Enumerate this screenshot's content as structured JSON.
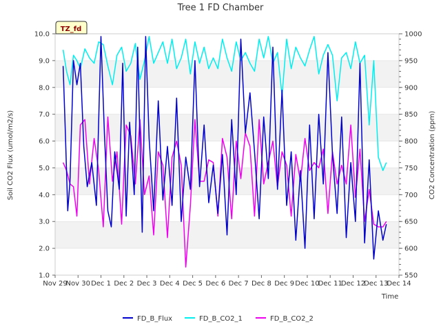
{
  "chart_data": {
    "type": "line",
    "title": "Tree 1 FD Chamber",
    "badge": "TZ_fd",
    "xlabel": "Time",
    "ylabel_left": "Soil CO2 Flux (umol/m2/s)",
    "ylabel_right": "CO2 Concentration (ppm)",
    "x_ticks": [
      "Nov 29",
      "Nov 30",
      "Dec 1",
      "Dec 2",
      "Dec 3",
      "Dec 4",
      "Dec 5",
      "Dec 6",
      "Dec 7",
      "Dec 8",
      "Dec 9",
      "Dec 10",
      "Dec 11",
      "Dec 12",
      "Dec 13",
      "Dec 14"
    ],
    "xlim": [
      0,
      15
    ],
    "ylim_left": [
      1.0,
      10.0
    ],
    "y_ticks_left": [
      "1.0",
      "2.0",
      "3.0",
      "4.0",
      "5.0",
      "6.0",
      "7.0",
      "8.0",
      "9.0",
      "10.0"
    ],
    "ylim_right": [
      550,
      1000
    ],
    "y_ticks_right": [
      "550",
      "600",
      "650",
      "700",
      "750",
      "800",
      "850",
      "900",
      "950",
      "1000"
    ],
    "legend_position": "bottom",
    "colors": {
      "flux": "#0000cc",
      "co2_1": "#00eeee",
      "co2_2": "#ee00ee",
      "band": "#f2f2f2",
      "grid": "#dddddd"
    },
    "series": [
      {
        "name": "FD_B_Flux",
        "axis": "left",
        "color": "#0000cc",
        "x": [
          0.35,
          0.45,
          0.55,
          0.65,
          0.8,
          0.95,
          1.1,
          1.25,
          1.4,
          1.6,
          1.8,
          2.0,
          2.15,
          2.3,
          2.45,
          2.6,
          2.8,
          2.95,
          3.1,
          3.25,
          3.45,
          3.6,
          3.8,
          3.95,
          4.1,
          4.3,
          4.5,
          4.7,
          4.9,
          5.1,
          5.3,
          5.5,
          5.7,
          5.9,
          6.1,
          6.3,
          6.5,
          6.7,
          6.9,
          7.1,
          7.3,
          7.5,
          7.7,
          7.9,
          8.1,
          8.3,
          8.5,
          8.7,
          8.9,
          9.1,
          9.3,
          9.5,
          9.7,
          9.9,
          10.1,
          10.3,
          10.5,
          10.7,
          10.9,
          11.1,
          11.3,
          11.5,
          11.7,
          11.9,
          12.1,
          12.3,
          12.5,
          12.7,
          12.9,
          13.1,
          13.3,
          13.5,
          13.7,
          13.9,
          14.1,
          14.3,
          14.45
        ],
        "y": [
          8.8,
          6.2,
          3.4,
          4.5,
          9.0,
          8.1,
          8.9,
          5.8,
          4.3,
          5.2,
          3.6,
          9.9,
          6.3,
          3.4,
          2.8,
          5.6,
          4.2,
          8.9,
          3.2,
          6.7,
          4.0,
          9.5,
          2.6,
          9.9,
          6.1,
          3.4,
          7.5,
          3.8,
          5.8,
          3.6,
          7.6,
          3.0,
          5.4,
          4.2,
          9.0,
          4.3,
          6.6,
          3.7,
          5.1,
          3.3,
          5.5,
          2.5,
          6.8,
          4.0,
          9.8,
          6.3,
          7.8,
          5.6,
          3.1,
          6.9,
          4.6,
          9.5,
          4.2,
          7.9,
          3.6,
          5.6,
          2.3,
          4.9,
          2.0,
          6.6,
          3.1,
          7.0,
          4.4,
          9.3,
          5.5,
          3.3,
          6.9,
          2.4,
          5.2,
          3.0,
          8.9,
          2.2,
          5.3,
          1.6,
          3.4,
          2.3,
          2.9
        ]
      },
      {
        "name": "FD_B_CO2_1",
        "axis": "right",
        "color": "#00eeee",
        "x": [
          0.35,
          0.5,
          0.65,
          0.8,
          0.95,
          1.1,
          1.3,
          1.5,
          1.7,
          1.9,
          2.1,
          2.3,
          2.5,
          2.7,
          2.9,
          3.1,
          3.3,
          3.5,
          3.7,
          3.9,
          4.1,
          4.3,
          4.5,
          4.7,
          4.9,
          5.1,
          5.3,
          5.5,
          5.7,
          5.9,
          6.1,
          6.3,
          6.5,
          6.7,
          6.9,
          7.1,
          7.3,
          7.5,
          7.7,
          7.9,
          8.1,
          8.3,
          8.5,
          8.7,
          8.9,
          9.1,
          9.3,
          9.5,
          9.7,
          9.9,
          10.1,
          10.3,
          10.5,
          10.7,
          10.9,
          11.1,
          11.3,
          11.5,
          11.7,
          11.9,
          12.1,
          12.3,
          12.5,
          12.7,
          12.9,
          13.1,
          13.3,
          13.5,
          13.7,
          13.9,
          14.1,
          14.3,
          14.45
        ],
        "y": [
          970,
          930,
          905,
          960,
          950,
          935,
          972,
          955,
          945,
          985,
          980,
          940,
          905,
          960,
          975,
          930,
          945,
          982,
          915,
          950,
          995,
          945,
          965,
          985,
          945,
          990,
          935,
          955,
          990,
          925,
          985,
          945,
          975,
          935,
          955,
          935,
          990,
          955,
          930,
          985,
          950,
          965,
          945,
          930,
          990,
          955,
          995,
          945,
          965,
          885,
          990,
          935,
          975,
          955,
          940,
          970,
          995,
          925,
          960,
          980,
          960,
          875,
          955,
          965,
          935,
          985,
          945,
          960,
          830,
          950,
          770,
          745,
          760
        ]
      },
      {
        "name": "FD_B_CO2_2",
        "axis": "right",
        "color": "#ee00ee",
        "x": [
          0.35,
          0.5,
          0.65,
          0.8,
          0.95,
          1.1,
          1.3,
          1.5,
          1.7,
          1.9,
          2.1,
          2.3,
          2.5,
          2.7,
          2.9,
          3.1,
          3.3,
          3.5,
          3.7,
          3.9,
          4.1,
          4.3,
          4.5,
          4.7,
          4.9,
          5.1,
          5.3,
          5.5,
          5.7,
          5.9,
          6.1,
          6.3,
          6.5,
          6.7,
          6.9,
          7.1,
          7.3,
          7.5,
          7.7,
          7.9,
          8.1,
          8.3,
          8.5,
          8.7,
          8.9,
          9.1,
          9.3,
          9.5,
          9.7,
          9.9,
          10.1,
          10.3,
          10.5,
          10.7,
          10.9,
          11.1,
          11.3,
          11.5,
          11.7,
          11.9,
          12.1,
          12.3,
          12.5,
          12.7,
          12.9,
          13.1,
          13.3,
          13.5,
          13.7,
          13.9,
          14.1,
          14.3,
          14.45
        ],
        "y": [
          760,
          745,
          720,
          715,
          660,
          830,
          840,
          720,
          805,
          745,
          640,
          845,
          725,
          780,
          645,
          830,
          810,
          720,
          840,
          700,
          735,
          625,
          780,
          755,
          620,
          770,
          800,
          755,
          565,
          680,
          840,
          725,
          725,
          765,
          760,
          660,
          805,
          770,
          655,
          800,
          730,
          815,
          790,
          660,
          840,
          720,
          760,
          800,
          715,
          780,
          755,
          660,
          775,
          725,
          805,
          745,
          760,
          750,
          785,
          665,
          780,
          720,
          755,
          720,
          830,
          695,
          785,
          650,
          710,
          645,
          640,
          640,
          650
        ]
      }
    ]
  },
  "legend": {
    "items": [
      {
        "label": "FD_B_Flux",
        "color": "#0000cc"
      },
      {
        "label": "FD_B_CO2_1",
        "color": "#00eeee"
      },
      {
        "label": "FD_B_CO2_2",
        "color": "#ee00ee"
      }
    ]
  }
}
